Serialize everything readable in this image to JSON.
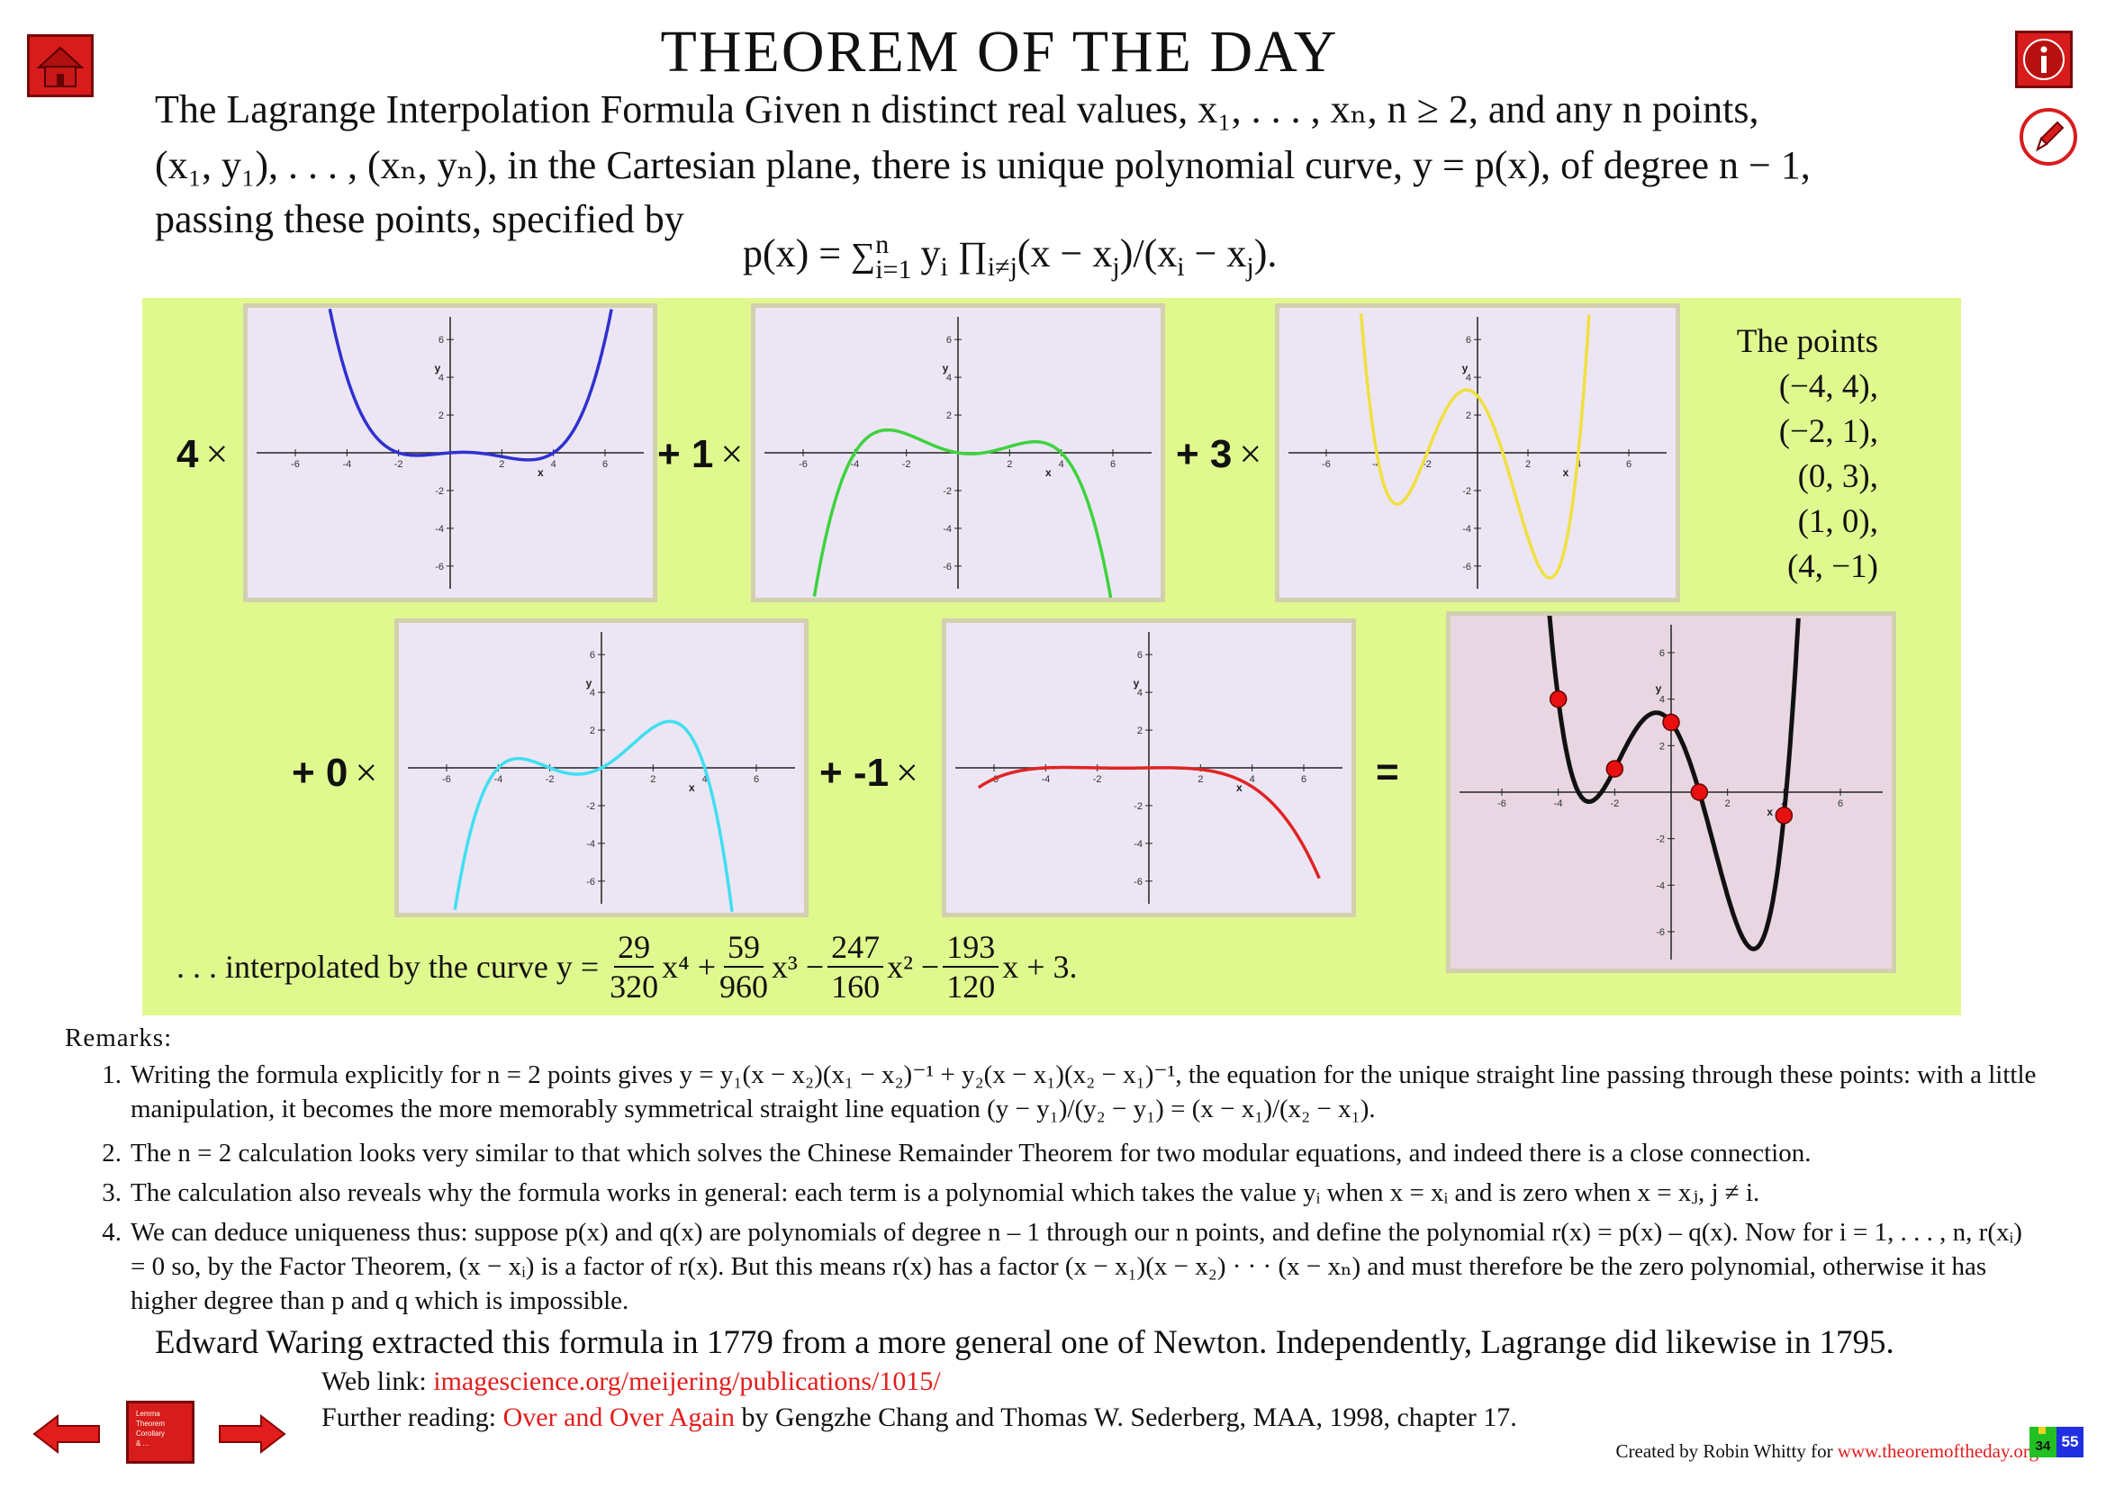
{
  "header": {
    "title": "THEOREM OF THE DAY",
    "theorem_line1": "The Lagrange Interpolation Formula Given n distinct real values, x₁, . . . , xₙ, n ≥ 2, and any n points,",
    "theorem_line2": "(x₁, y₁), . . . , (xₙ, yₙ), in the Cartesian plane, there is unique polynomial curve, y = p(x), of degree n − 1,",
    "theorem_line3": "passing these points, specified by"
  },
  "formula": {
    "lhs": "p(x) = ",
    "sum_sup": "n",
    "sum_sub": "i=1",
    "y_sub": "i",
    "prod_sub": "i≠j",
    "tail1": "(x − x",
    "j1": "j",
    "tail2": ")/(x",
    "i1": "i",
    "tail3": " − x",
    "j2": "j",
    "tail4": ")."
  },
  "illustration": {
    "coefficients": [
      "4",
      "+ 1",
      "+ 3",
      "+ 0",
      "+ -1"
    ],
    "times": "×",
    "equals": "=",
    "points_title": "The points",
    "points": [
      "(−4, 4),",
      "(−2, 1),",
      "(0, 3),",
      "(1, 0),",
      "(4, −1)"
    ],
    "axis_ticks_x": [
      "-6",
      "-4",
      "-2",
      "2",
      "4",
      "6"
    ],
    "axis_ticks_y": [
      "6",
      "4",
      "2",
      "-2",
      "-4",
      "-6"
    ],
    "axis_label_x": "x",
    "axis_label_y": "y",
    "curve_colors": [
      "#3030d0",
      "#3ed23e",
      "#f0e040",
      "#40dff0",
      "#e02424",
      "#111111"
    ],
    "point_color": "#e81010",
    "interp_prefix": ". . . interpolated by the curve y =",
    "interp_terms": [
      {
        "num": "29",
        "den": "320",
        "tail": "x⁴ +"
      },
      {
        "num": "59",
        "den": "960",
        "tail": "x³ −"
      },
      {
        "num": "247",
        "den": "160",
        "tail": "x² −"
      },
      {
        "num": "193",
        "den": "120",
        "tail": "x + 3."
      }
    ]
  },
  "remarks": {
    "title": "Remarks:",
    "items": [
      {
        "num": "1.",
        "text": "Writing the formula explicitly for n = 2 points gives y = y₁(x − x₂)(x₁ − x₂)⁻¹ + y₂(x − x₁)(x₂ − x₁)⁻¹, the equation for the unique straight line passing through these points: with a little manipulation, it becomes the more memorably symmetrical straight line equation (y − y₁)/(y₂ − y₁) = (x − x₁)/(x₂ − x₁)."
      },
      {
        "num": "2.",
        "text": "The n = 2 calculation looks very similar to that which solves the Chinese Remainder Theorem for two modular equations, and indeed there is a close connection."
      },
      {
        "num": "3.",
        "text": "The calculation also reveals why the formula works in general: each term is a polynomial which takes the value yᵢ when x = xᵢ and is zero when x = xⱼ, j ≠ i."
      },
      {
        "num": "4.",
        "text": "We can deduce uniqueness thus: suppose p(x) and q(x) are polynomials of degree n – 1 through our n points, and define the polynomial r(x) = p(x) – q(x). Now for i = 1, . . . , n, r(xᵢ) = 0 so, by the Factor Theorem, (x − xᵢ) is a factor of r(x). But this means r(x) has a factor (x − x₁)(x − x₂) · · · (x − xₙ) and must therefore be the zero polynomial, otherwise it has higher degree than p and q which is impossible."
      }
    ]
  },
  "footer": {
    "history": "Edward Waring extracted this formula in 1779 from a more general one of Newton. Independently, Lagrange did likewise in 1795.",
    "weblink_label": "Web link:",
    "weblink_url": "imagescience.org/meijering/publications/1015/",
    "further_label": "Further reading:",
    "further_title": "Over and Over Again",
    "further_rest": "by Gengzhe Chang and Thomas W. Sederberg, MAA, 1998, chapter 17.",
    "credit_prefix": "Created by Robin Whitty for",
    "credit_link": "www.theoremoftheday.org",
    "page_badge_small": "34",
    "page_badge_big": "55",
    "book_icon_lines": [
      "Lemma",
      "Theorem",
      "Corollary",
      "& ..."
    ]
  }
}
